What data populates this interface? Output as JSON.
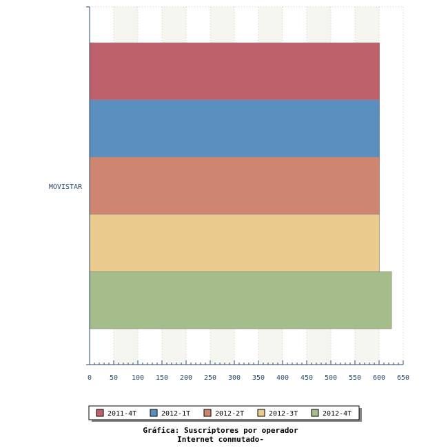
{
  "chart_data": {
    "type": "bar",
    "orientation": "horizontal",
    "categories": [
      "MOVISTAR"
    ],
    "series": [
      {
        "name": "2011-4T",
        "values": [
          601
        ],
        "color": "#bf616b"
      },
      {
        "name": "2012-1T",
        "values": [
          601
        ],
        "color": "#5b8fc0"
      },
      {
        "name": "2012-2T",
        "values": [
          601
        ],
        "color": "#ce8670"
      },
      {
        "name": "2012-3T",
        "values": [
          601
        ],
        "color": "#ebcb8d"
      },
      {
        "name": "2012-4T",
        "values": [
          626
        ],
        "color": "#a5bd8b"
      }
    ],
    "xlim": [
      0,
      650
    ],
    "xticks": [
      "0",
      "50",
      "100",
      "150",
      "200",
      "250",
      "300",
      "350",
      "400",
      "450",
      "500",
      "550",
      "600",
      "650"
    ],
    "grid": true,
    "legend_position": "bottom",
    "title_line1": "Gráfica: Suscriptores por operador",
    "title_line2": "Internet conmutado-"
  }
}
